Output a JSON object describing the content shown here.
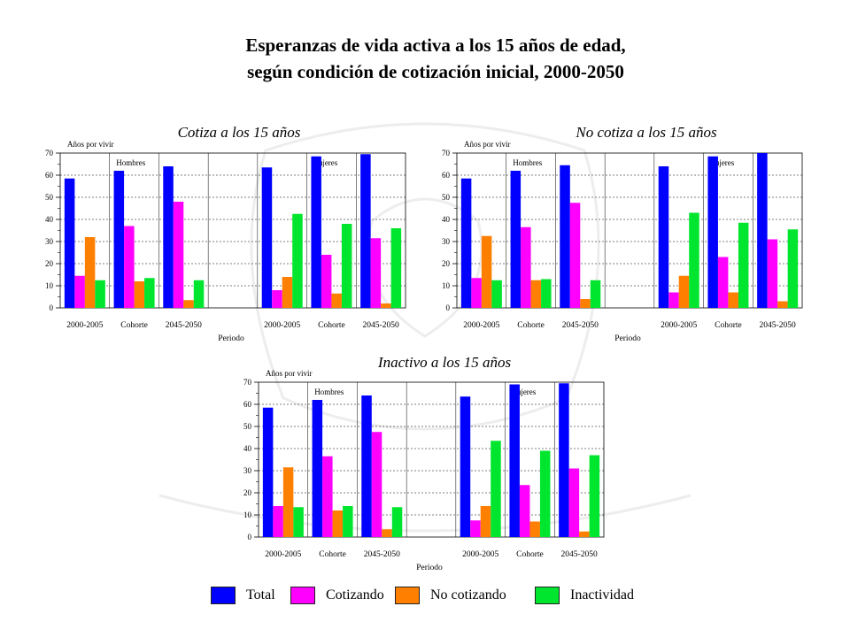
{
  "title_line1": "Esperanzas de vida activa a los 15 años de edad,",
  "title_line2": "según condición de cotización inicial, 2000-2050",
  "colors": {
    "Total": "#0000ff",
    "Cotizando": "#ff00ff",
    "No cotizando": "#ff7f00",
    "Inactividad": "#00e62e"
  },
  "legend": [
    "Total",
    "Cotizando",
    "No cotizando",
    "Inactividad"
  ],
  "chart_data": [
    {
      "type": "bar",
      "title": "Cotiza a los 15 años",
      "ylabel": "Años por vivir",
      "xlabel": "Periodo",
      "ylim": [
        0,
        70
      ],
      "yticks": [
        0,
        10,
        20,
        30,
        40,
        50,
        60,
        70
      ],
      "group_labels": [
        "Hombres",
        "Mujeres"
      ],
      "categories": [
        "2000-2005",
        "Cohorte",
        "2045-2050",
        "2000-2005",
        "Cohorte",
        "2045-2050"
      ],
      "series": [
        {
          "name": "Total",
          "values": [
            58.5,
            62,
            64,
            63.5,
            68.5,
            69.5
          ]
        },
        {
          "name": "Cotizando",
          "values": [
            14.5,
            37,
            48,
            8,
            24,
            31.5
          ]
        },
        {
          "name": "No cotizando",
          "values": [
            32,
            12,
            3.5,
            14,
            6.5,
            2
          ]
        },
        {
          "name": "Inactividad",
          "values": [
            12.5,
            13.5,
            12.5,
            42.5,
            38,
            36
          ]
        }
      ]
    },
    {
      "type": "bar",
      "title": "No cotiza a los 15 años",
      "ylabel": "Años por vivir",
      "xlabel": "Periodo",
      "ylim": [
        0,
        70
      ],
      "yticks": [
        0,
        10,
        20,
        30,
        40,
        50,
        60,
        70
      ],
      "group_labels": [
        "Hombres",
        "Mujeres"
      ],
      "categories": [
        "2000-2005",
        "Cohorte",
        "2045-2050",
        "2000-2005",
        "Cohorte",
        "2045-2050"
      ],
      "series": [
        {
          "name": "Total",
          "values": [
            58.5,
            62,
            64.5,
            64,
            68.5,
            70
          ]
        },
        {
          "name": "Cotizando",
          "values": [
            13.5,
            36.5,
            47.5,
            7,
            23,
            31
          ]
        },
        {
          "name": "No cotizando",
          "values": [
            32.5,
            12.5,
            4,
            14.5,
            7,
            3
          ]
        },
        {
          "name": "Inactividad",
          "values": [
            12.5,
            13,
            12.5,
            43,
            38.5,
            35.5
          ]
        }
      ]
    },
    {
      "type": "bar",
      "title": "Inactivo a los 15 años",
      "ylabel": "Años por vivir",
      "xlabel": "Periodo",
      "ylim": [
        0,
        70
      ],
      "yticks": [
        0,
        10,
        20,
        30,
        40,
        50,
        60,
        70
      ],
      "group_labels": [
        "Hombres",
        "Mujeres"
      ],
      "categories": [
        "2000-2005",
        "Cohorte",
        "2045-2050",
        "2000-2005",
        "Cohorte",
        "2045-2050"
      ],
      "series": [
        {
          "name": "Total",
          "values": [
            58.5,
            62,
            64,
            63.5,
            69,
            69.5
          ]
        },
        {
          "name": "Cotizando",
          "values": [
            14,
            36.5,
            47.5,
            7.5,
            23.5,
            31
          ]
        },
        {
          "name": "No cotizando",
          "values": [
            31.5,
            12,
            3.5,
            14,
            7,
            2.5
          ]
        },
        {
          "name": "Inactividad",
          "values": [
            13.5,
            14,
            13.5,
            43.5,
            39,
            37
          ]
        }
      ]
    }
  ]
}
